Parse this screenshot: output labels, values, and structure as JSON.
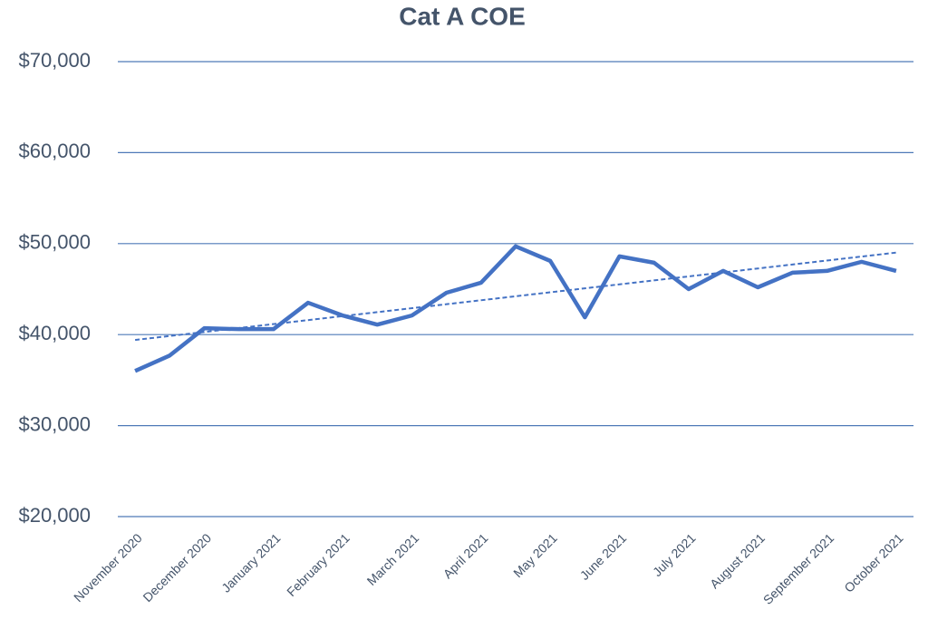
{
  "chart_data": {
    "type": "line",
    "title": "Cat A COE",
    "categories": [
      "November 2020",
      null,
      "December 2020",
      null,
      "January 2021",
      null,
      "February 2021",
      null,
      "March 2021",
      null,
      "April 2021",
      null,
      "May 2021",
      null,
      "June 2021",
      null,
      "July 2021",
      null,
      "August 2021",
      null,
      "September 2021",
      null,
      "October 2021"
    ],
    "series": [
      {
        "name": "Cat A COE",
        "color": "#4472c4",
        "values": [
          36000,
          37700,
          40700,
          40600,
          40600,
          43500,
          42100,
          41100,
          42100,
          44600,
          45700,
          49700,
          48100,
          41900,
          48600,
          47900,
          45000,
          47000,
          45200,
          46800,
          47000,
          48000,
          47000
        ]
      }
    ],
    "trendline": "linear",
    "ylim": [
      20000,
      70000
    ],
    "yticks": [
      {
        "value": 20000,
        "label": "$20,000"
      },
      {
        "value": 30000,
        "label": "$30,000"
      },
      {
        "value": 40000,
        "label": "$40,000"
      },
      {
        "value": 50000,
        "label": "$50,000"
      },
      {
        "value": 60000,
        "label": "$60,000"
      },
      {
        "value": 70000,
        "label": "$70,000"
      }
    ],
    "grid": true
  }
}
